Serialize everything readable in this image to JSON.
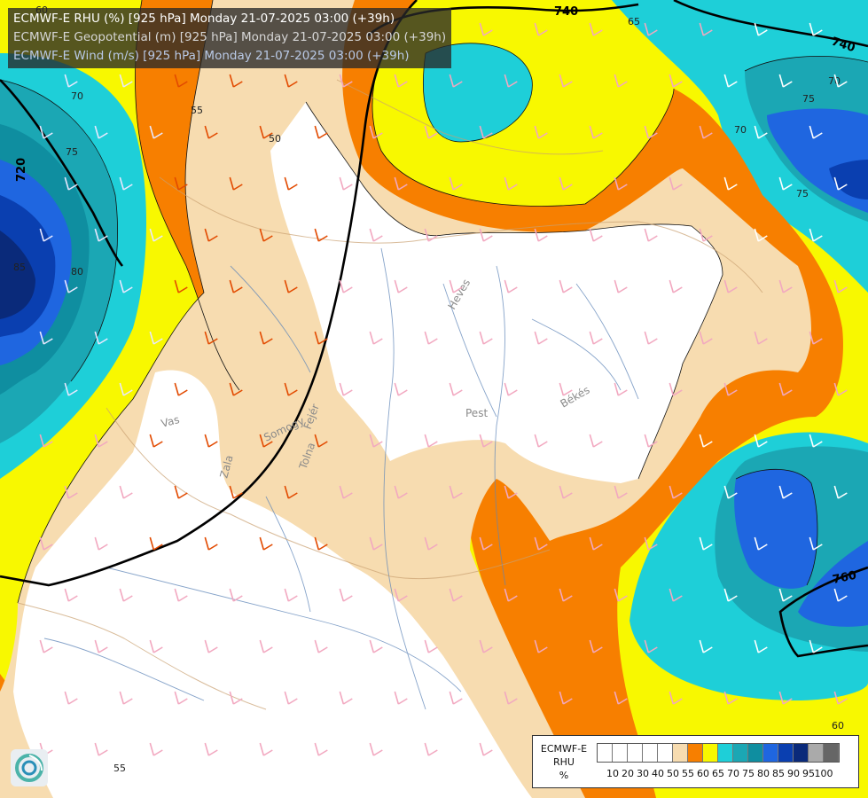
{
  "header": {
    "line1": "ECMWF-E RHU (%) [925 hPa] Monday 21-07-2025 03:00 (+39h)",
    "line2": "ECMWF-E Geopotential (m) [925 hPa] Monday 21-07-2025 03:00 (+39h)",
    "line3": "ECMWF-E Wind (m/s) [925 hPa] Monday 21-07-2025 03:00 (+39h)",
    "line1_color": "#ffffff",
    "line2_color": "#d6d6d6",
    "line3_color": "#b9c9e6"
  },
  "map": {
    "geopotential_labels": [
      "740",
      "740",
      "720",
      "760"
    ],
    "rhu_labels": [
      "60",
      "65",
      "70",
      "75",
      "70",
      "75",
      "55",
      "50",
      "70",
      "75",
      "80",
      "85",
      "55",
      "60"
    ],
    "place_labels": [
      "Heves",
      "Pest",
      "Békés",
      "Vas",
      "Somogy",
      "Fejér",
      "Tolna",
      "Zala"
    ]
  },
  "legend": {
    "title_line1": "ECMWF-E",
    "title_line2": "RHU",
    "title_line3": "%",
    "ticks": [
      "10",
      "20",
      "30",
      "40",
      "50",
      "55",
      "60",
      "65",
      "70",
      "75",
      "80",
      "85",
      "90",
      "95",
      "100"
    ],
    "colors": [
      "#ffffff",
      "#ffffff",
      "#ffffff",
      "#ffffff",
      "#ffffff",
      "#f7dcb0",
      "#f77f00",
      "#f8f800",
      "#1ecfd8",
      "#1ba7b4",
      "#0f8ea0",
      "#1f66e0",
      "#0a3fb0",
      "#0a2a7a",
      "#aaaaaa",
      "#666666"
    ]
  }
}
